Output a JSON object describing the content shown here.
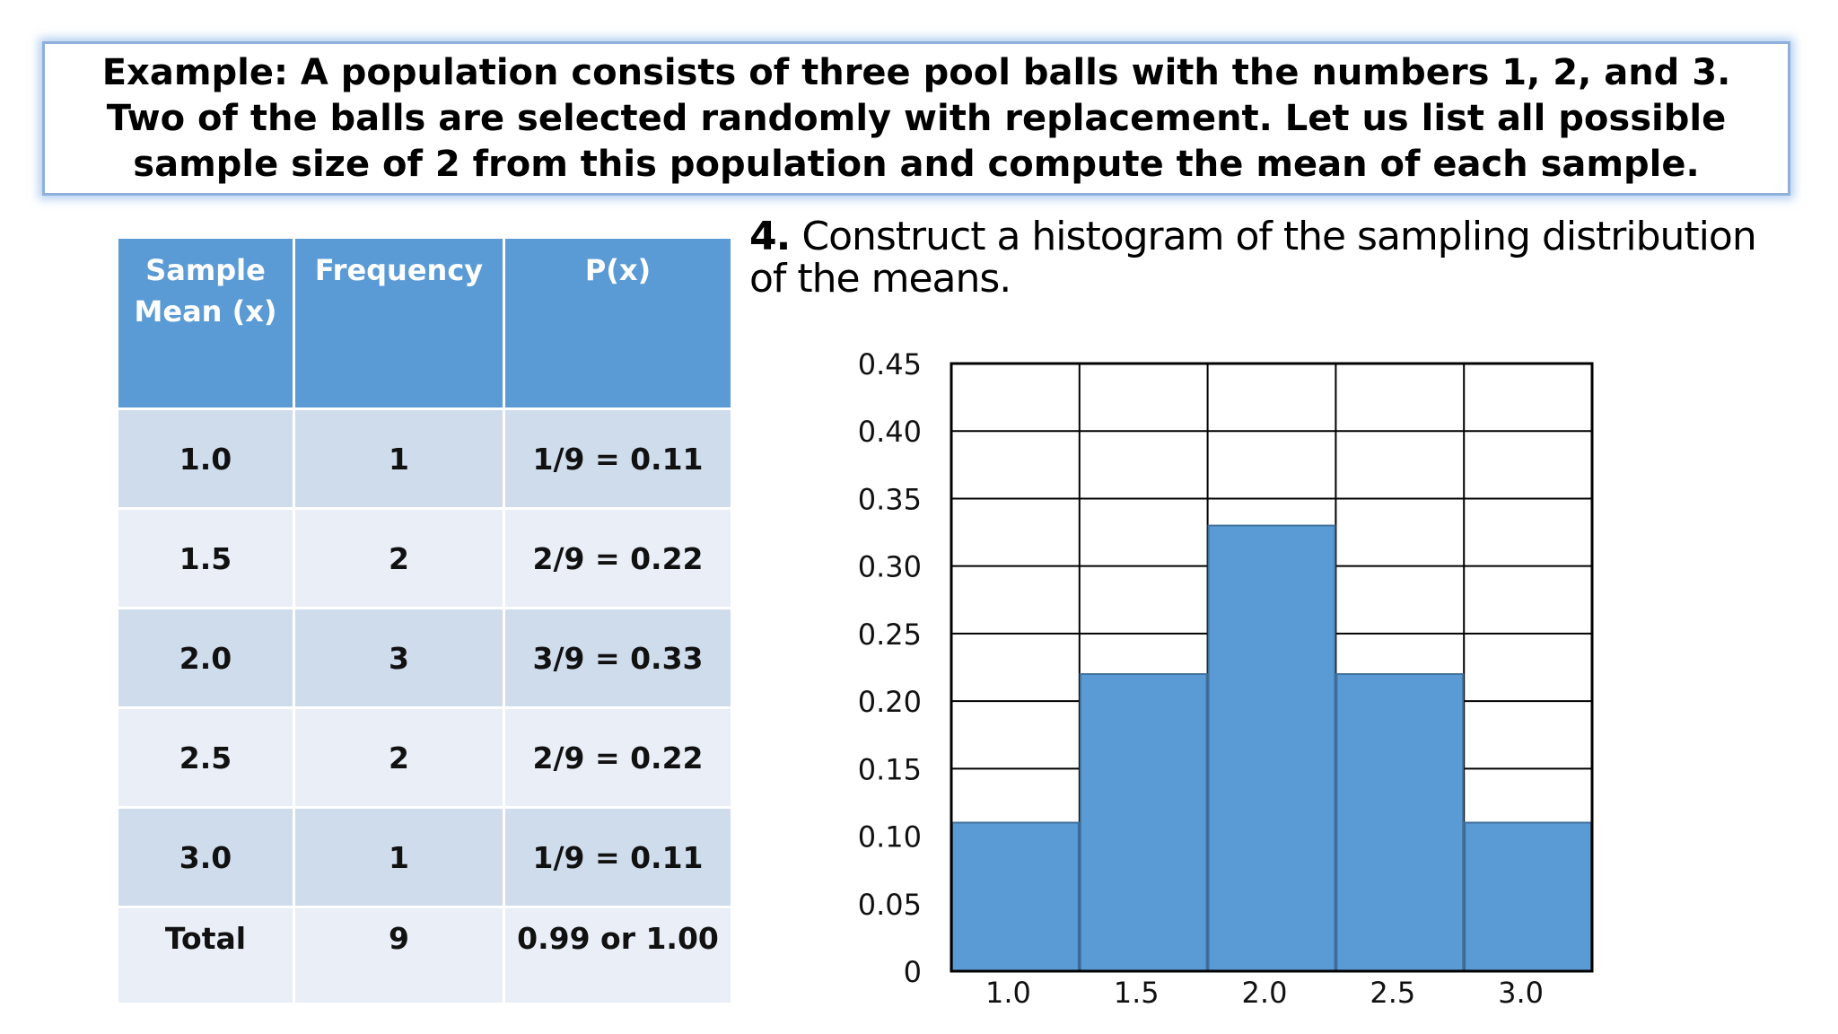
{
  "example": {
    "text": "Example: A population consists of three pool balls with the numbers 1, 2, and 3. Two of the balls are selected randomly with replacement. Let us list all possible sample size of 2 from this population and compute the mean of each sample."
  },
  "table": {
    "headers": [
      "Sample Mean (x)",
      "Frequency",
      "P(x)"
    ],
    "rows": [
      [
        "1.0",
        "1",
        "1/9 = 0.11"
      ],
      [
        "1.5",
        "2",
        "2/9 = 0.22"
      ],
      [
        "2.0",
        "3",
        "3/9 = 0.33"
      ],
      [
        "2.5",
        "2",
        "2/9 = 0.22"
      ],
      [
        "3.0",
        "1",
        "1/9 = 0.11"
      ]
    ],
    "total": [
      "Total",
      "9",
      "0.99 or 1.00"
    ]
  },
  "step": {
    "number": "4.",
    "text": "Construct a histogram of the sampling distribution of the means."
  },
  "chart_data": {
    "type": "bar",
    "categories": [
      "1.0",
      "1.5",
      "2.0",
      "2.5",
      "3.0"
    ],
    "values": [
      0.11,
      0.22,
      0.33,
      0.22,
      0.11
    ],
    "yticks": [
      "0",
      "0.05",
      "0.10",
      "0.15",
      "0.20",
      "0.25",
      "0.30",
      "0.35",
      "0.40",
      "0.45"
    ],
    "ylim": [
      0,
      0.45
    ],
    "grid": true,
    "colors": {
      "bar": "#5b9bd5",
      "bar_edge": "#41719c",
      "grid": "#000000"
    }
  }
}
